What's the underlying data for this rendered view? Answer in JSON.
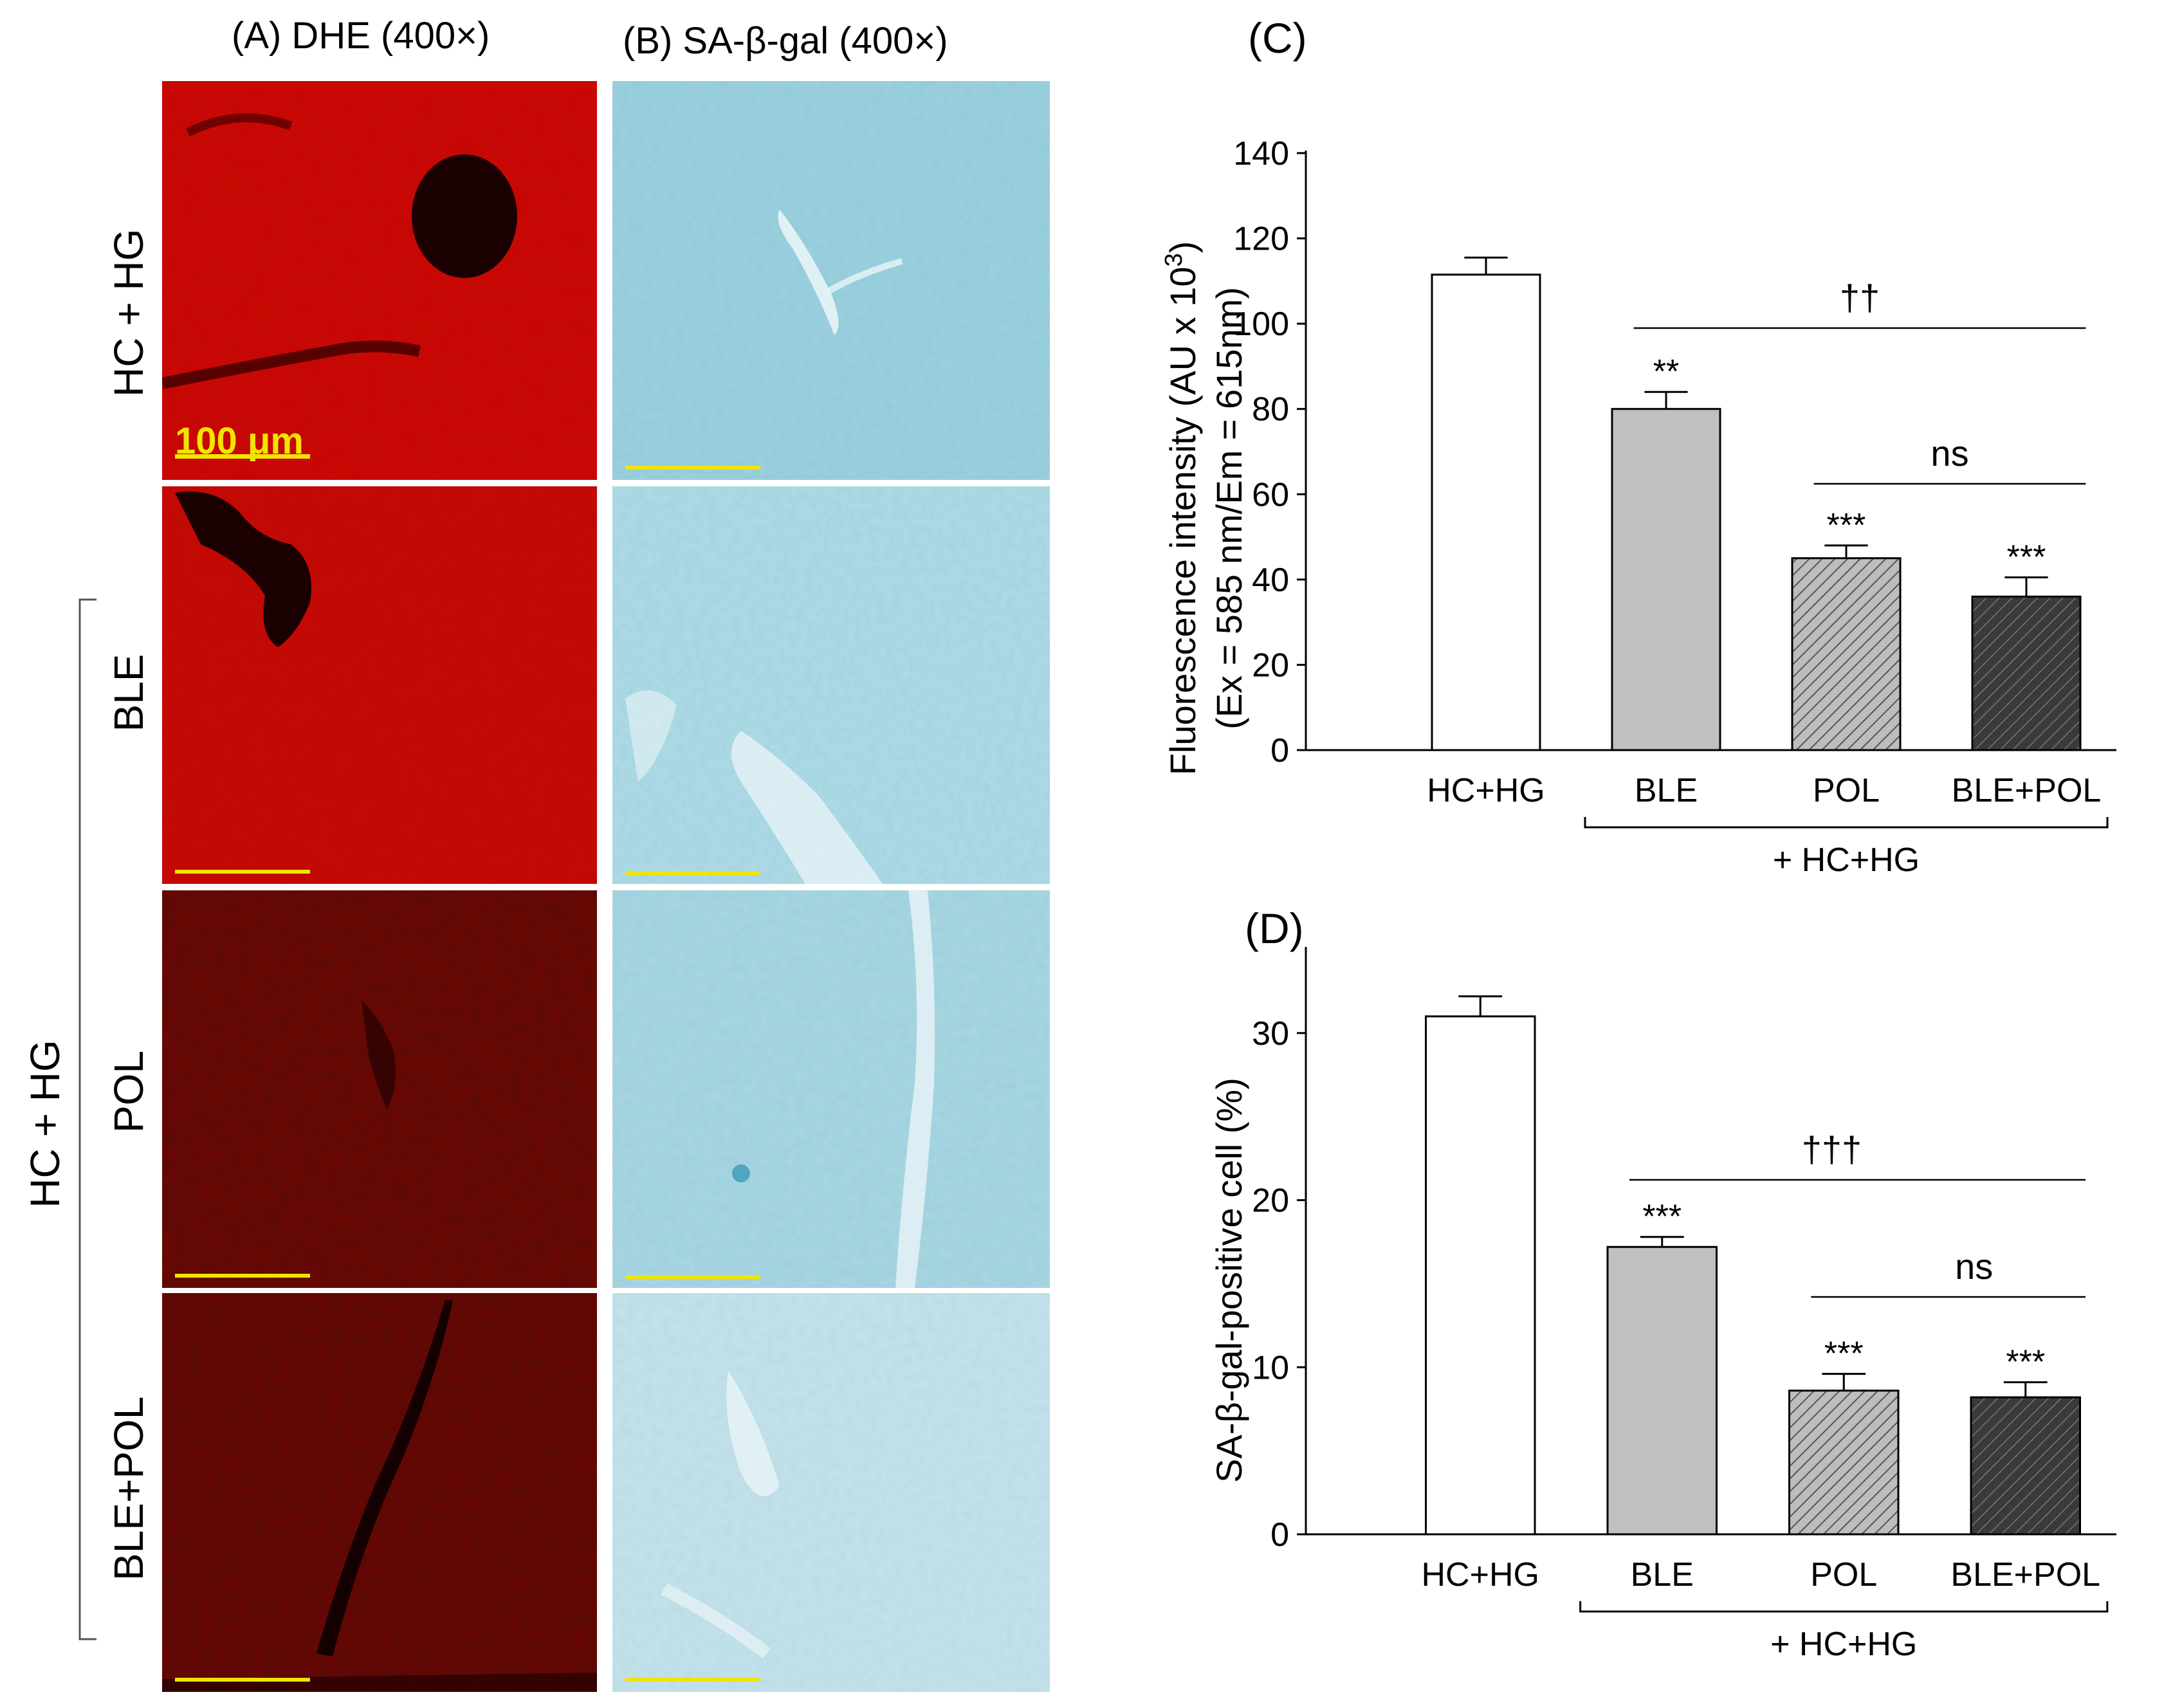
{
  "panels": {
    "a_title": "(A) DHE (400×)",
    "b_title": "(B) SA-β-gal (400×)",
    "scale_label": "100 μm",
    "rows": [
      "HC + HG",
      "BLE",
      "POL",
      "BLE+POL"
    ],
    "group_label": "HC + HG"
  },
  "colors": {
    "dhe_bright": "#c80a05",
    "dhe_dim": "#5a0b06",
    "sabgal": "#a9d6e3",
    "scale_bar": "#f2e400"
  },
  "chart_data": [
    {
      "type": "bar",
      "panel_label": "(C)",
      "title": "",
      "xlabel": "",
      "ylabel_line1": "Fluorescence intensity (AU x 10",
      "ylabel_sup": "3",
      "ylabel_line1_end": ")",
      "ylabel_line2": "(Ex = 585 nm/Em = 615nm)",
      "ylim": [
        0,
        140
      ],
      "yticks": [
        "0",
        "20",
        "40",
        "60",
        "80",
        "100",
        "120",
        "140"
      ],
      "categories": [
        "HC+HG",
        "BLE",
        "POL",
        "BLE+POL"
      ],
      "values": [
        111.5,
        80,
        45,
        36
      ],
      "errors": [
        4,
        4,
        3,
        4.5
      ],
      "significance": [
        "",
        "**",
        "***",
        "***"
      ],
      "fills": [
        "white",
        "gray",
        "hatch-light",
        "hatch-dark"
      ],
      "group_label": "+ HC+HG",
      "comparisons": [
        {
          "label": "††",
          "from": 1,
          "to": 3
        },
        {
          "label": "ns",
          "from": 2,
          "to": 3
        }
      ]
    },
    {
      "type": "bar",
      "panel_label": "(D)",
      "title": "",
      "xlabel": "",
      "ylabel": "SA-β-gal-positive cell (%)",
      "ylim": [
        0,
        35
      ],
      "yticks": [
        "0",
        "10",
        "20",
        "30"
      ],
      "categories": [
        "HC+HG",
        "BLE",
        "POL",
        "BLE+POL"
      ],
      "values": [
        31,
        17.2,
        8.6,
        8.2
      ],
      "errors": [
        1.2,
        0.6,
        1.0,
        0.9
      ],
      "significance": [
        "",
        "***",
        "***",
        "***"
      ],
      "fills": [
        "white",
        "gray",
        "hatch-light",
        "hatch-dark"
      ],
      "group_label": "+ HC+HG",
      "comparisons": [
        {
          "label": "†††",
          "from": 1,
          "to": 3
        },
        {
          "label": "ns",
          "from": 2,
          "to": 3
        }
      ]
    }
  ]
}
